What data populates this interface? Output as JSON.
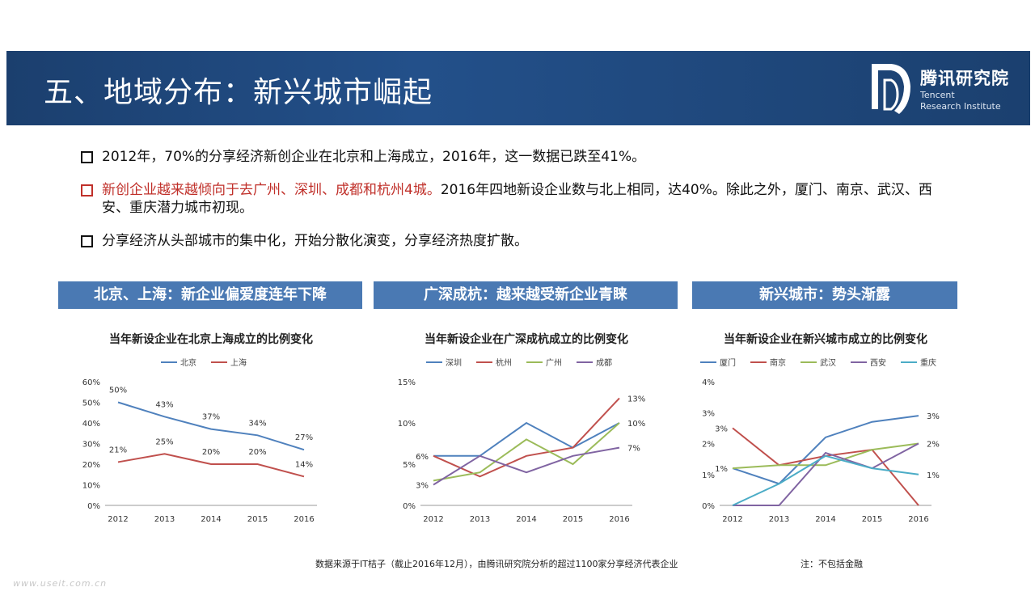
{
  "header": {
    "title": "五、地域分布：新兴城市崛起"
  },
  "logo": {
    "cn": "腾讯研究院",
    "en1": "Tencent",
    "en2": "Research Institute"
  },
  "bullets": [
    {
      "text": "2012年，70%的分享经济新创企业在北京和上海成立，2016年，这一数据已跌至41%。"
    },
    {
      "red": "新创企业越来越倾向于去广州、深圳、成都和杭州4城。",
      "text": "2016年四地新设企业数与北上相同，达40%。除此之外，厦门、南京、武汉、西安、重庆潜力城市初现。"
    },
    {
      "text": "分享经济从头部城市的集中化，开始分散化演变，分享经济热度扩散。"
    }
  ],
  "sections": [
    "北京、上海：新企业偏爱度连年下降",
    "广深成杭：越来越受新企业青睐",
    "新兴城市：势头渐露"
  ],
  "colors": {
    "blue": "#4f81bd",
    "red": "#c0504d",
    "green": "#9bbb59",
    "purple": "#8064a2",
    "cyan": "#4bacc6",
    "header": "#1b3f6e",
    "section": "#4a79b3"
  },
  "chart_data": [
    {
      "type": "line",
      "title": "当年新设企业在北京上海成立的比例变化",
      "x": [
        "2012",
        "2013",
        "2014",
        "2015",
        "2016"
      ],
      "ylim": [
        0,
        60
      ],
      "yticks": [
        "0%",
        "10%",
        "20%",
        "30%",
        "40%",
        "50%",
        "60%"
      ],
      "series": [
        {
          "name": "北京",
          "color": "#4f81bd",
          "values": [
            50,
            43,
            37,
            34,
            27
          ],
          "labels": [
            "50%",
            "43%",
            "37%",
            "34%",
            "27%"
          ]
        },
        {
          "name": "上海",
          "color": "#c0504d",
          "values": [
            21,
            25,
            20,
            20,
            14
          ],
          "labels": [
            "21%",
            "25%",
            "20%",
            "20%",
            "14%"
          ]
        }
      ]
    },
    {
      "type": "line",
      "title": "当年新设企业在广深成杭成立的比例变化",
      "x": [
        "2012",
        "2013",
        "2014",
        "2015",
        "2016"
      ],
      "ylim": [
        0,
        15
      ],
      "yticks": [
        "0%",
        "5%",
        "10%",
        "15%"
      ],
      "series": [
        {
          "name": "深圳",
          "color": "#4f81bd",
          "values": [
            6,
            6,
            10,
            7,
            10
          ]
        },
        {
          "name": "杭州",
          "color": "#c0504d",
          "values": [
            6,
            3.5,
            6,
            7,
            13
          ]
        },
        {
          "name": "广州",
          "color": "#9bbb59",
          "values": [
            3,
            4,
            8,
            5,
            10
          ]
        },
        {
          "name": "成都",
          "color": "#8064a2",
          "values": [
            2.5,
            6,
            4,
            6,
            7
          ]
        }
      ],
      "labels": [
        {
          "text": "6%",
          "x": "2012",
          "y": 6
        },
        {
          "text": "3%",
          "x": "2012",
          "y": 2.5
        },
        {
          "text": "13%",
          "x": "2016",
          "y": 13
        },
        {
          "text": "10%",
          "x": "2016",
          "y": 10
        },
        {
          "text": "7%",
          "x": "2016",
          "y": 7
        }
      ]
    },
    {
      "type": "line",
      "title": "当年新设企业在新兴城市成立的比例变化",
      "x": [
        "2012",
        "2013",
        "2014",
        "2015",
        "2016"
      ],
      "ylim": [
        0,
        4
      ],
      "yticks": [
        "0%",
        "1%",
        "2%",
        "3%",
        "4%"
      ],
      "series": [
        {
          "name": "厦门",
          "color": "#4f81bd",
          "values": [
            1.2,
            0.7,
            2.2,
            2.7,
            2.9
          ]
        },
        {
          "name": "南京",
          "color": "#c0504d",
          "values": [
            2.5,
            1.3,
            1.6,
            1.8,
            0
          ]
        },
        {
          "name": "武汉",
          "color": "#9bbb59",
          "values": [
            1.2,
            1.3,
            1.3,
            1.8,
            2.0
          ]
        },
        {
          "name": "西安",
          "color": "#8064a2",
          "values": [
            0,
            0,
            1.7,
            1.2,
            2.0
          ]
        },
        {
          "name": "重庆",
          "color": "#4bacc6",
          "values": [
            0,
            0.7,
            1.6,
            1.2,
            1.0
          ]
        }
      ],
      "labels": [
        {
          "text": "3%",
          "x": "2012",
          "y": 2.5
        },
        {
          "text": "1%",
          "x": "2012",
          "y": 1.2
        },
        {
          "text": "3%",
          "x": "2016",
          "y": 2.9
        },
        {
          "text": "2%",
          "x": "2016",
          "y": 2.0
        },
        {
          "text": "1%",
          "x": "2016",
          "y": 1.0
        }
      ]
    }
  ],
  "footer": "数据来源于IT桔子（截止2016年12月），由腾讯研究院分析的超过1100家分享经济代表企业",
  "note": "注：不包括金融",
  "watermark": "www.useit.com.cn"
}
